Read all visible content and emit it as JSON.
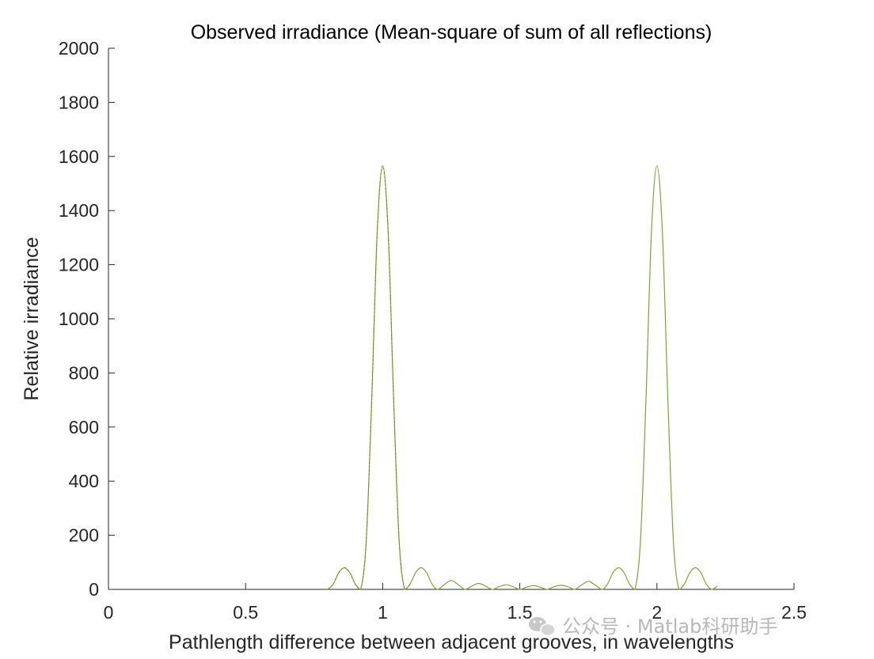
{
  "chart_data": {
    "type": "line",
    "title": "Observed irradiance  (Mean-square of sum of all reflections)",
    "xlabel": "Pathlength difference between adjacent grooves, in wavelengths",
    "ylabel": "Relative irradiance",
    "xlim": [
      0,
      2.5
    ],
    "ylim": [
      0,
      2000
    ],
    "xticks": [
      0,
      0.5,
      1,
      1.5,
      2,
      2.5
    ],
    "xtick_labels": [
      "0",
      "0.5",
      "1",
      "1.5",
      "2",
      "2.5"
    ],
    "yticks": [
      0,
      200,
      400,
      600,
      800,
      1000,
      1200,
      1400,
      1600,
      1800,
      2000
    ],
    "ytick_labels": [
      "0",
      "200",
      "400",
      "600",
      "800",
      "1000",
      "1200",
      "1400",
      "1600",
      "1800",
      "2000"
    ],
    "grid": false,
    "series": [
      {
        "description": "grating interference pattern over x from 0.8 to 2.22",
        "color": "#7aa72c",
        "points": [
          [
            0.8,
            0
          ],
          [
            0.82,
            20
          ],
          [
            0.84,
            62
          ],
          [
            0.86,
            80
          ],
          [
            0.88,
            62
          ],
          [
            0.9,
            20
          ],
          [
            0.92,
            0
          ],
          [
            0.94,
            180
          ],
          [
            0.96,
            700
          ],
          [
            0.98,
            1320
          ],
          [
            1.0,
            1565
          ],
          [
            1.02,
            1320
          ],
          [
            1.04,
            700
          ],
          [
            1.06,
            180
          ],
          [
            1.08,
            0
          ],
          [
            1.1,
            20
          ],
          [
            1.12,
            62
          ],
          [
            1.14,
            80
          ],
          [
            1.16,
            62
          ],
          [
            1.18,
            20
          ],
          [
            1.2,
            0
          ],
          [
            1.225,
            18
          ],
          [
            1.25,
            33
          ],
          [
            1.275,
            18
          ],
          [
            1.3,
            0
          ],
          [
            1.325,
            12
          ],
          [
            1.35,
            22
          ],
          [
            1.375,
            12
          ],
          [
            1.4,
            0
          ],
          [
            1.425,
            10
          ],
          [
            1.45,
            17
          ],
          [
            1.475,
            10
          ],
          [
            1.5,
            0
          ],
          [
            1.525,
            8
          ],
          [
            1.55,
            14
          ],
          [
            1.575,
            8
          ],
          [
            1.6,
            0
          ],
          [
            1.625,
            10
          ],
          [
            1.65,
            15
          ],
          [
            1.675,
            10
          ],
          [
            1.7,
            0
          ],
          [
            1.725,
            16
          ],
          [
            1.75,
            30
          ],
          [
            1.775,
            16
          ],
          [
            1.8,
            0
          ],
          [
            1.82,
            20
          ],
          [
            1.84,
            62
          ],
          [
            1.86,
            80
          ],
          [
            1.88,
            62
          ],
          [
            1.9,
            20
          ],
          [
            1.92,
            0
          ],
          [
            1.94,
            180
          ],
          [
            1.96,
            700
          ],
          [
            1.98,
            1320
          ],
          [
            2.0,
            1565
          ],
          [
            2.02,
            1320
          ],
          [
            2.04,
            700
          ],
          [
            2.06,
            180
          ],
          [
            2.08,
            0
          ],
          [
            2.1,
            20
          ],
          [
            2.12,
            62
          ],
          [
            2.14,
            80
          ],
          [
            2.16,
            62
          ],
          [
            2.18,
            20
          ],
          [
            2.2,
            0
          ],
          [
            2.22,
            12
          ]
        ]
      }
    ],
    "overlay_segment": {
      "description": "darker overlapping trace around first main peak",
      "color": "#8a7a1e",
      "x_range": [
        0.8,
        1.1
      ]
    }
  },
  "watermark": {
    "text": "公众号 · Matlab科研助手",
    "icon": "wechat-icon",
    "color": "#b8b8b8"
  }
}
